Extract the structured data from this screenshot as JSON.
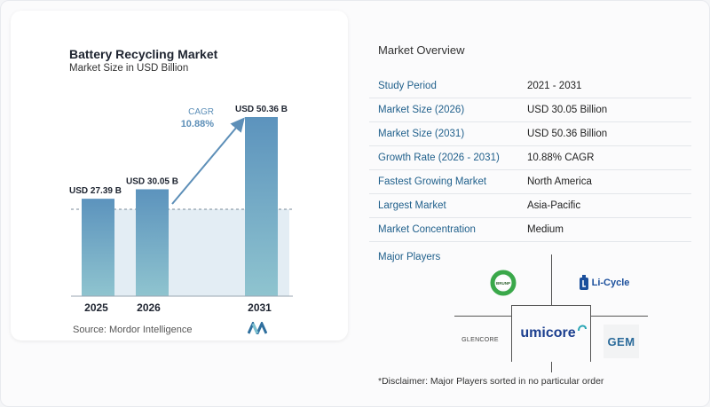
{
  "chart_data": {
    "type": "bar",
    "title": "Battery Recycling Market",
    "subtitle": "Market Size in USD Billion",
    "categories": [
      "2025",
      "2026",
      "2031"
    ],
    "values": [
      27.39,
      30.05,
      50.36
    ],
    "value_labels": [
      "USD 27.39 B",
      "USD 30.05 B",
      "USD 50.36 B"
    ],
    "cagr_label": "CAGR",
    "cagr_value": "10.88%",
    "colors": {
      "bar_top": "#5c93bd",
      "bar_bottom": "#8fc4cf",
      "band": "#e3edf4",
      "arrow": "#5d8fb8",
      "cagr": "#5d8fb8"
    },
    "ylim": [
      0,
      55
    ]
  },
  "source": "Source:  Mordor Intelligence",
  "overview": {
    "title": "Market Overview",
    "rows": [
      {
        "label": "Study Period",
        "value": "2021 - 2031"
      },
      {
        "label": "Market Size (2026)",
        "value": "USD 30.05 Billion"
      },
      {
        "label": "Market Size (2031)",
        "value": "USD 50.36 Billion"
      },
      {
        "label": "Growth Rate (2026 - 2031)",
        "value": "10.88% CAGR"
      },
      {
        "label": "Fastest Growing Market",
        "value": "North America"
      },
      {
        "label": "Largest Market",
        "value": "Asia-Pacific"
      },
      {
        "label": "Market Concentration",
        "value": "Medium"
      }
    ]
  },
  "players": {
    "label": "Major Players",
    "logos": [
      "GLENCORE",
      "umicore",
      "Li-Cycle",
      "GEM",
      "BRUNP"
    ],
    "disclaimer": "*Disclaimer: Major Players sorted in no particular order"
  }
}
